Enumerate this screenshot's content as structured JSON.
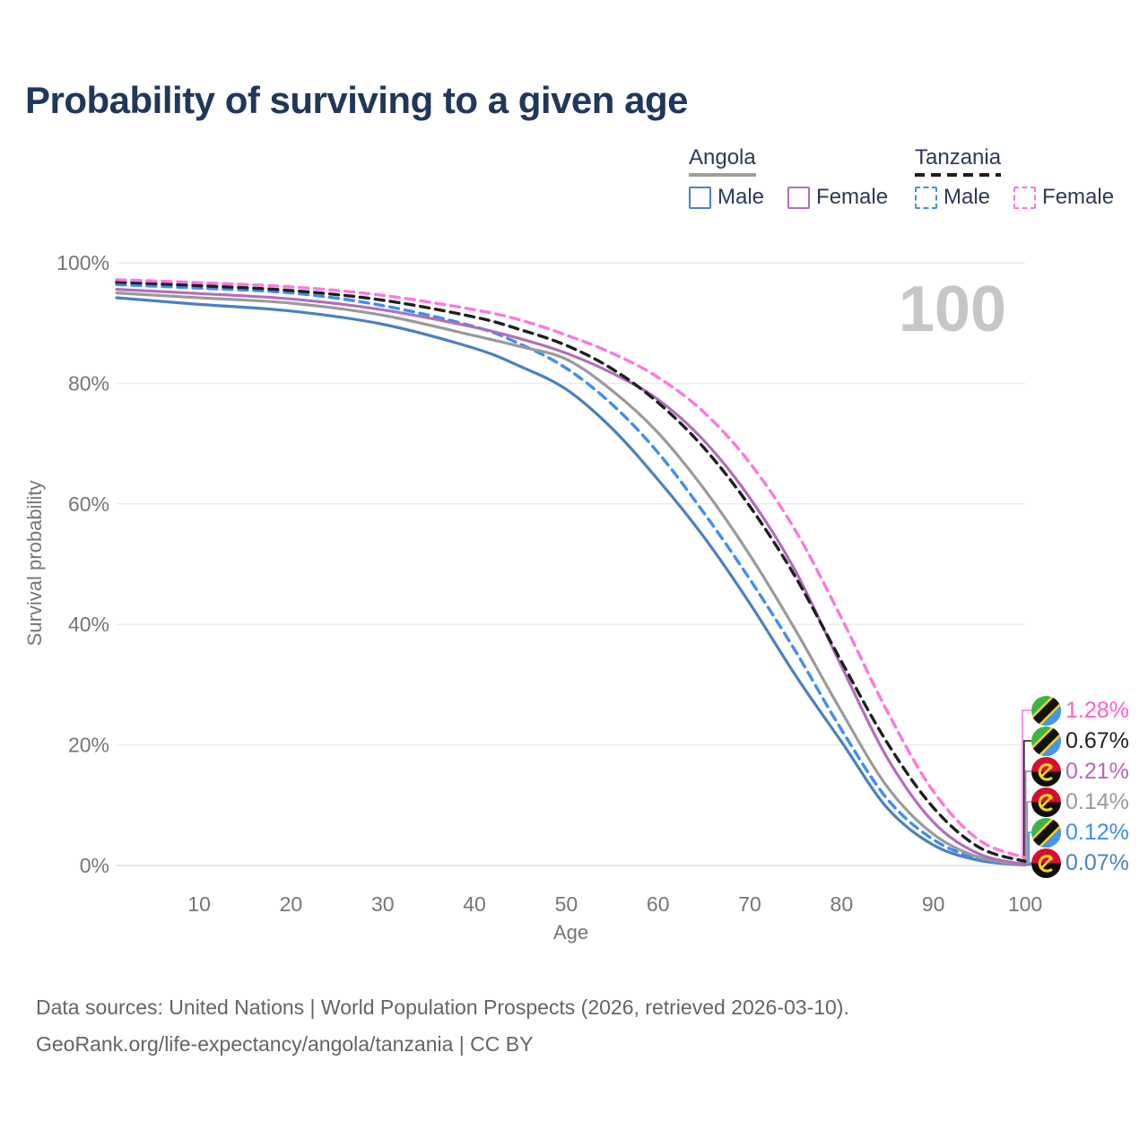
{
  "title": "Probability of surviving to a given age",
  "watermark": "100",
  "legend": {
    "groups": [
      {
        "label": "Angola",
        "line_color": "#9e9e9e",
        "dashed": false,
        "items": [
          {
            "label": "Male",
            "color": "#4b80c0",
            "dashed": false
          },
          {
            "label": "Female",
            "color": "#b06fb8",
            "dashed": false
          }
        ]
      },
      {
        "label": "Tanzania",
        "line_color": "#1f1f1f",
        "dashed": true,
        "items": [
          {
            "label": "Male",
            "color": "#3f8df2",
            "dashed": true
          },
          {
            "label": "Female",
            "color": "#ff77dd",
            "dashed": true
          }
        ]
      }
    ]
  },
  "chart_data": {
    "type": "line",
    "x": [
      1,
      10,
      20,
      30,
      40,
      45,
      50,
      55,
      60,
      65,
      70,
      75,
      80,
      85,
      90,
      95,
      100
    ],
    "series": [
      {
        "name": "Tanzania Female",
        "country": "tanzania",
        "sex": "female",
        "color": "#ff77dd",
        "dashed": true,
        "end_label": "1.28%",
        "values": [
          97.2,
          96.7,
          96.0,
          94.6,
          92.2,
          90.5,
          88.0,
          85.0,
          81.0,
          75.2,
          66.8,
          55.5,
          41.0,
          25.5,
          12.3,
          4.2,
          1.28
        ]
      },
      {
        "name": "Tanzania",
        "country": "tanzania",
        "sex": "both",
        "color": "#1f1f1f",
        "dashed": true,
        "end_label": "0.67%",
        "values": [
          96.8,
          96.2,
          95.4,
          93.8,
          91.0,
          88.9,
          86.3,
          82.4,
          76.8,
          69.3,
          59.6,
          47.8,
          33.8,
          20.3,
          9.6,
          3.0,
          0.67
        ]
      },
      {
        "name": "Angola Female",
        "country": "angola",
        "sex": "female",
        "color": "#b06fb8",
        "dashed": false,
        "end_label": "0.21%",
        "values": [
          95.6,
          94.9,
          94.0,
          92.2,
          89.3,
          87.4,
          85.0,
          81.7,
          77.3,
          70.5,
          61.0,
          48.8,
          33.0,
          17.8,
          7.2,
          1.9,
          0.21
        ]
      },
      {
        "name": "Angola",
        "country": "angola",
        "sex": "both",
        "color": "#9a9a9a",
        "dashed": false,
        "end_label": "0.14%",
        "values": [
          95.0,
          94.2,
          93.3,
          91.3,
          87.9,
          86.1,
          84.0,
          78.8,
          71.8,
          62.5,
          51.5,
          39.0,
          25.5,
          13.0,
          5.2,
          1.35,
          0.14
        ]
      },
      {
        "name": "Tanzania Male",
        "country": "tanzania",
        "sex": "male",
        "color": "#3f8df2",
        "dashed": true,
        "end_label": "0.12%",
        "values": [
          96.4,
          95.8,
          95.0,
          92.9,
          89.4,
          86.5,
          82.5,
          76.5,
          68.5,
          58.5,
          47.5,
          35.5,
          22.5,
          11.0,
          4.3,
          1.1,
          0.12
        ]
      },
      {
        "name": "Angola Male",
        "country": "angola",
        "sex": "male",
        "color": "#4b80c0",
        "dashed": false,
        "end_label": "0.07%",
        "values": [
          94.2,
          93.1,
          92.0,
          89.8,
          85.8,
          82.8,
          79.0,
          72.5,
          64.0,
          54.5,
          43.5,
          31.5,
          20.5,
          9.5,
          3.4,
          0.85,
          0.07
        ]
      }
    ],
    "xlabel": "Age",
    "ylabel": "Survival probability",
    "x_ticks": [
      10,
      20,
      30,
      40,
      50,
      60,
      70,
      80,
      90,
      100
    ],
    "y_ticks": [
      {
        "value": 0,
        "label": "0%"
      },
      {
        "value": 20,
        "label": "20%"
      },
      {
        "value": 40,
        "label": "40%"
      },
      {
        "value": 60,
        "label": "60%"
      },
      {
        "value": 80,
        "label": "80%"
      },
      {
        "value": 100,
        "label": "100%"
      }
    ],
    "xlim": [
      1,
      100
    ],
    "ylim": [
      0,
      100
    ],
    "grid": "horizontal",
    "legend_position": "top-right"
  },
  "end_labels": [
    {
      "value": "1.28%",
      "flag": "tanzania",
      "color": "#ff5fc8"
    },
    {
      "value": "0.67%",
      "flag": "tanzania",
      "color": "#1f1f1f"
    },
    {
      "value": "0.21%",
      "flag": "angola",
      "color": "#b667b3"
    },
    {
      "value": "0.14%",
      "flag": "angola",
      "color": "#9a9a9a"
    },
    {
      "value": "0.12%",
      "flag": "tanzania",
      "color": "#3f8df2"
    },
    {
      "value": "0.07%",
      "flag": "angola",
      "color": "#4b80c0"
    }
  ],
  "flag_colors": {
    "tanzania": {
      "green": "#3cb44a",
      "blue": "#4596e8",
      "black": "#111111",
      "yellow": "#fcd116"
    },
    "angola": {
      "red": "#d40e31",
      "black": "#0d0d0d",
      "yellow": "#f9d616"
    }
  },
  "footer": {
    "line1": "Data sources: United Nations | World Population Prospects (2026, retrieved 2026-03-10).",
    "line2": "GeoRank.org/life-expectancy/angola/tanzania | CC BY"
  }
}
